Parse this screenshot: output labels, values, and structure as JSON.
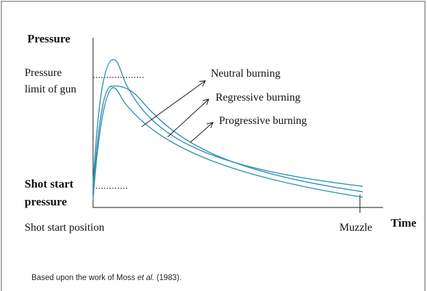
{
  "y_axis_label": "Pressure",
  "x_axis_label": "Time",
  "pressure_limit_label": [
    "Pressure",
    "limit of gun"
  ],
  "shot_start_pressure_label": [
    "Shot start",
    "pressure"
  ],
  "shot_start_position_label": "Shot start position",
  "muzzle_label": "Muzzle",
  "curves": [
    {
      "label": "Neutral burning"
    },
    {
      "label": "Regressive burning"
    },
    {
      "label": "Progressive burning"
    }
  ],
  "footnote": {
    "before": "Based upon the work of Moss ",
    "italic": "et al.",
    "after": " (1983)."
  }
}
